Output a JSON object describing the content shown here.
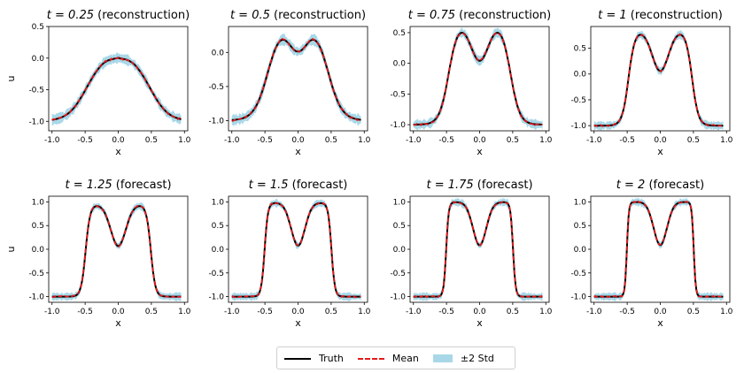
{
  "colors": {
    "truth": "#000000",
    "mean": "#e41a1c",
    "std": "#a8d8e8",
    "axes": "#000000"
  },
  "legend": {
    "truth": "Truth",
    "mean": "Mean",
    "std": "±2 Std"
  },
  "chart_data": [
    {
      "type": "line",
      "t_label": "t = 0.25",
      "kind": "(reconstruction)",
      "t": 0.25,
      "xlabel": "x",
      "ylabel": "u",
      "xlim": [
        -1.05,
        1.05
      ],
      "ylim": [
        -1.15,
        0.5
      ],
      "xticks": [
        -1.0,
        -0.5,
        0.0,
        0.5,
        1.0
      ],
      "xtick_labels": [
        "-1.0",
        "-0.5",
        "0.0",
        "0.5",
        "1.0"
      ],
      "yticks": [
        0.5,
        0.0,
        -0.5,
        -1.0
      ],
      "ytick_labels": [
        "0.5",
        "0.0",
        "-0.5",
        "-1.0"
      ],
      "series": [
        {
          "name": "Truth"
        },
        {
          "name": "Mean"
        },
        {
          "name": "±2 Std"
        }
      ]
    },
    {
      "type": "line",
      "t_label": "t = 0.5",
      "kind": "(reconstruction)",
      "t": 0.5,
      "xlabel": "x",
      "ylabel": "",
      "xlim": [
        -1.05,
        1.05
      ],
      "ylim": [
        -1.15,
        0.38
      ],
      "xticks": [
        -1.0,
        -0.5,
        0.0,
        0.5,
        1.0
      ],
      "xtick_labels": [
        "-1.0",
        "-0.5",
        "0.0",
        "0.5",
        "1.0"
      ],
      "yticks": [
        0.0,
        -0.5,
        -1.0
      ],
      "ytick_labels": [
        "0.0",
        "-0.5",
        "-1.0"
      ],
      "series": [
        {
          "name": "Truth"
        },
        {
          "name": "Mean"
        },
        {
          "name": "±2 Std"
        }
      ]
    },
    {
      "type": "line",
      "t_label": "t = 0.75",
      "kind": "(reconstruction)",
      "t": 0.75,
      "xlabel": "x",
      "ylabel": "",
      "xlim": [
        -1.05,
        1.05
      ],
      "ylim": [
        -1.1,
        0.6
      ],
      "xticks": [
        -1.0,
        -0.5,
        0.0,
        0.5,
        1.0
      ],
      "xtick_labels": [
        "-1.0",
        "-0.5",
        "0.0",
        "0.5",
        "1.0"
      ],
      "yticks": [
        0.5,
        0.0,
        -0.5,
        -1.0
      ],
      "ytick_labels": [
        "0.5",
        "0.0",
        "-0.5",
        "-1.0"
      ],
      "series": [
        {
          "name": "Truth"
        },
        {
          "name": "Mean"
        },
        {
          "name": "±2 Std"
        }
      ]
    },
    {
      "type": "line",
      "t_label": "t = 1",
      "kind": "(reconstruction)",
      "t": 1.0,
      "xlabel": "x",
      "ylabel": "",
      "xlim": [
        -1.05,
        1.05
      ],
      "ylim": [
        -1.1,
        0.92
      ],
      "xticks": [
        -1.0,
        -0.5,
        0.0,
        0.5,
        1.0
      ],
      "xtick_labels": [
        "-1.0",
        "-0.5",
        "0.0",
        "0.5",
        "1.0"
      ],
      "yticks": [
        0.5,
        0.0,
        -0.5,
        -1.0
      ],
      "ytick_labels": [
        "0.5",
        "0.0",
        "-0.5",
        "-1.0"
      ],
      "series": [
        {
          "name": "Truth"
        },
        {
          "name": "Mean"
        },
        {
          "name": "±2 Std"
        }
      ]
    },
    {
      "type": "line",
      "t_label": "t = 1.25",
      "kind": "(forecast)",
      "t": 1.25,
      "xlabel": "x",
      "ylabel": "u",
      "xlim": [
        -1.05,
        1.05
      ],
      "ylim": [
        -1.12,
        1.12
      ],
      "xticks": [
        -1.0,
        -0.5,
        0.0,
        0.5,
        1.0
      ],
      "xtick_labels": [
        "-1.0",
        "-0.5",
        "0.0",
        "0.5",
        "1.0"
      ],
      "yticks": [
        1.0,
        0.5,
        0.0,
        -0.5,
        -1.0
      ],
      "ytick_labels": [
        "1.0",
        "0.5",
        "0.0",
        "-0.5",
        "-1.0"
      ],
      "series": [
        {
          "name": "Truth"
        },
        {
          "name": "Mean"
        },
        {
          "name": "±2 Std"
        }
      ]
    },
    {
      "type": "line",
      "t_label": "t = 1.5",
      "kind": "(forecast)",
      "t": 1.5,
      "xlabel": "x",
      "ylabel": "",
      "xlim": [
        -1.05,
        1.05
      ],
      "ylim": [
        -1.12,
        1.12
      ],
      "xticks": [
        -1.0,
        -0.5,
        0.0,
        0.5,
        1.0
      ],
      "xtick_labels": [
        "-1.0",
        "-0.5",
        "0.0",
        "0.5",
        "1.0"
      ],
      "yticks": [
        1.0,
        0.5,
        0.0,
        -0.5,
        -1.0
      ],
      "ytick_labels": [
        "1.0",
        "0.5",
        "0.0",
        "-0.5",
        "-1.0"
      ],
      "series": [
        {
          "name": "Truth"
        },
        {
          "name": "Mean"
        },
        {
          "name": "±2 Std"
        }
      ]
    },
    {
      "type": "line",
      "t_label": "t = 1.75",
      "kind": "(forecast)",
      "t": 1.75,
      "xlabel": "x",
      "ylabel": "",
      "xlim": [
        -1.05,
        1.05
      ],
      "ylim": [
        -1.12,
        1.12
      ],
      "xticks": [
        -1.0,
        -0.5,
        0.0,
        0.5,
        1.0
      ],
      "xtick_labels": [
        "-1.0",
        "-0.5",
        "0.0",
        "0.5",
        "1.0"
      ],
      "yticks": [
        1.0,
        0.5,
        0.0,
        -0.5,
        -1.0
      ],
      "ytick_labels": [
        "1.0",
        "0.5",
        "0.0",
        "-0.5",
        "-1.0"
      ],
      "series": [
        {
          "name": "Truth"
        },
        {
          "name": "Mean"
        },
        {
          "name": "±2 Std"
        }
      ]
    },
    {
      "type": "line",
      "t_label": "t = 2",
      "kind": "(forecast)",
      "t": 2.0,
      "xlabel": "x",
      "ylabel": "",
      "xlim": [
        -1.05,
        1.05
      ],
      "ylim": [
        -1.12,
        1.12
      ],
      "xticks": [
        -1.0,
        -0.5,
        0.0,
        0.5,
        1.0
      ],
      "xtick_labels": [
        "-1.0",
        "-0.5",
        "0.0",
        "0.5",
        "1.0"
      ],
      "yticks": [
        1.0,
        0.5,
        0.0,
        -0.5,
        -1.0
      ],
      "ytick_labels": [
        "1.0",
        "0.5",
        "0.0",
        "-0.5",
        "-1.0"
      ],
      "series": [
        {
          "name": "Truth"
        },
        {
          "name": "Mean"
        },
        {
          "name": "±2 Std"
        }
      ]
    }
  ]
}
